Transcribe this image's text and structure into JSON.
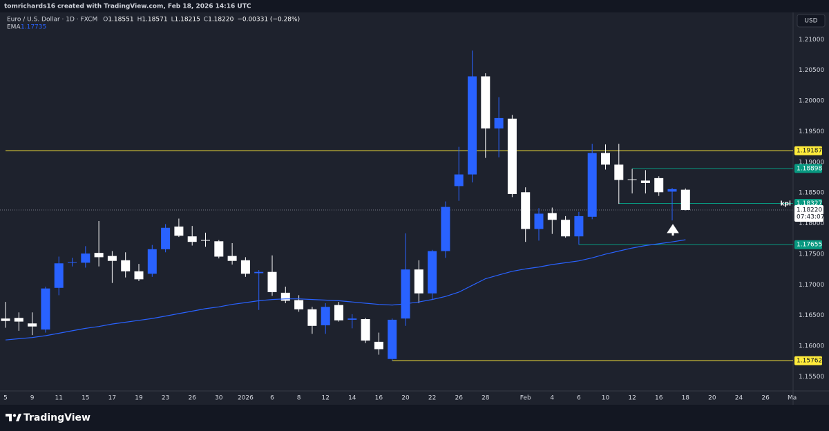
{
  "header": {
    "credit": "tomrichards16 created with TradingView.com, Feb 18, 2026 14:16 UTC",
    "currency": "USD"
  },
  "chart_data": {
    "type": "candlestick",
    "title": "Euro / U.S. Dollar · 1D · FXCM",
    "ohlc_legend": {
      "keys": [
        "O",
        "H",
        "L",
        "C"
      ],
      "values": [
        "1.18551",
        "1.18571",
        "1.18215",
        "1.18220"
      ],
      "change": "−0.00331 (−0.28%)"
    },
    "categories": [
      "5",
      null,
      "9",
      null,
      "11",
      null,
      "15",
      null,
      "17",
      null,
      "19",
      null,
      "23",
      null,
      "26",
      null,
      "30",
      null,
      "2026",
      null,
      "6",
      null,
      "8",
      null,
      "12",
      null,
      "14",
      null,
      "16",
      null,
      "20",
      null,
      "22",
      null,
      "26",
      null,
      "28",
      null,
      null,
      "Feb",
      null,
      "4",
      null,
      "6",
      null,
      "10",
      null,
      "12",
      null,
      "16",
      null,
      "18",
      null,
      "20",
      null,
      "24",
      null,
      "26",
      null,
      "Ma"
    ],
    "open": [
      1.1645,
      1.1646,
      1.1637,
      1.1627,
      1.1695,
      1.1737,
      1.1736,
      1.1752,
      1.1747,
      1.174,
      1.1722,
      1.1718,
      1.1758,
      1.1795,
      1.1779,
      1.1773,
      1.1771,
      1.1747,
      1.174,
      1.1719,
      1.1721,
      1.1687,
      1.1675,
      1.166,
      1.1634,
      1.1667,
      1.1643,
      1.1644,
      1.1607,
      1.1579,
      1.1645,
      1.1725,
      1.1686,
      1.1755,
      1.1861,
      1.188,
      1.204,
      1.1955,
      1.1971,
      1.1851,
      1.1791,
      1.1817,
      1.1806,
      1.1779,
      1.1811,
      1.1915,
      1.1896,
      1.1872,
      1.187,
      1.1874,
      1.1852,
      1.18551,
      null,
      null,
      null,
      null,
      null,
      null,
      null,
      null
    ],
    "high": [
      1.1672,
      1.1655,
      1.1655,
      1.1697,
      1.1746,
      1.1744,
      1.1763,
      1.1804,
      1.1755,
      1.1753,
      1.1734,
      1.1765,
      1.1799,
      1.1808,
      1.1796,
      1.1785,
      1.1773,
      1.1768,
      1.1745,
      1.1724,
      1.1748,
      1.1697,
      1.1683,
      1.1664,
      1.167,
      1.1672,
      1.1652,
      1.1646,
      1.1622,
      1.1645,
      1.1784,
      1.174,
      1.1757,
      1.1836,
      1.1925,
      1.2082,
      1.2045,
      1.2006,
      1.1977,
      1.1859,
      1.1825,
      1.1826,
      1.1812,
      1.1819,
      1.193,
      1.1929,
      1.193,
      1.1889,
      1.1887,
      1.1877,
      1.1858,
      1.18571,
      null,
      null,
      null,
      null,
      null,
      null,
      null,
      null
    ],
    "low": [
      1.163,
      1.1625,
      1.1618,
      1.1622,
      1.1683,
      1.173,
      1.1728,
      1.173,
      1.1703,
      1.1712,
      1.1706,
      1.1713,
      1.1753,
      1.1778,
      1.1764,
      1.1762,
      1.1743,
      1.1733,
      1.1713,
      1.1659,
      1.1682,
      1.167,
      1.1656,
      1.162,
      1.162,
      1.164,
      1.1629,
      1.1605,
      1.1586,
      1.15762,
      1.1633,
      1.167,
      1.1676,
      1.1744,
      1.1837,
      1.1867,
      1.1907,
      1.1908,
      1.1843,
      1.177,
      1.1772,
      1.1783,
      1.1777,
      1.17655,
      1.1807,
      1.1888,
      1.1832,
      1.1849,
      1.1849,
      1.1845,
      1.1805,
      1.18215,
      null,
      null,
      null,
      null,
      null,
      null,
      null,
      null
    ],
    "close": [
      1.1641,
      1.164,
      1.1632,
      1.1694,
      1.1735,
      1.1737,
      1.1751,
      1.1745,
      1.1739,
      1.1722,
      1.1709,
      1.1758,
      1.1793,
      1.178,
      1.177,
      1.1772,
      1.1746,
      1.1739,
      1.1718,
      1.1721,
      1.1688,
      1.1674,
      1.166,
      1.1633,
      1.1664,
      1.1642,
      1.1645,
      1.1609,
      1.1595,
      1.1643,
      1.1725,
      1.1686,
      1.1755,
      1.1827,
      1.188,
      1.204,
      1.1955,
      1.1972,
      1.1848,
      1.1791,
      1.1816,
      1.1806,
      1.1779,
      1.1812,
      1.1915,
      1.1896,
      1.1871,
      1.1871,
      1.1866,
      1.1851,
      1.1856,
      1.1822,
      null,
      null,
      null,
      null,
      null,
      null,
      null,
      null
    ],
    "up_color": "#2962ff",
    "down_color": "#ffffff",
    "series": [
      {
        "name": "EMA",
        "color": "#2962ff",
        "value_label": "1.17735",
        "values": [
          1.161,
          1.1612,
          1.1614,
          1.1617,
          1.1621,
          1.1625,
          1.1629,
          1.1632,
          1.1636,
          1.1639,
          1.1642,
          1.1645,
          1.1649,
          1.1653,
          1.1657,
          1.1661,
          1.1664,
          1.1668,
          1.1671,
          1.1674,
          1.1676,
          1.1677,
          1.1677,
          1.1676,
          1.1675,
          1.1674,
          1.1672,
          1.167,
          1.1668,
          1.1667,
          1.1669,
          1.1672,
          1.1676,
          1.1681,
          1.1688,
          1.1699,
          1.171,
          1.1716,
          1.1722,
          1.1726,
          1.1729,
          1.1733,
          1.1736,
          1.1739,
          1.1744,
          1.175,
          1.1755,
          1.176,
          1.1764,
          1.1767,
          1.177,
          1.17735,
          null,
          null,
          null,
          null,
          null,
          null,
          null,
          null
        ]
      }
    ],
    "levels": [
      {
        "value": 1.19187,
        "color": "#ffeb3b"
      },
      {
        "value": 1.18898,
        "color": "#089981"
      },
      {
        "value": 1.18327,
        "color": "#089981"
      },
      {
        "value": 1.17655,
        "color": "#089981"
      },
      {
        "value": 1.15762,
        "color": "#ffeb3b"
      }
    ],
    "last_price": {
      "value": 1.1822,
      "label": "1.18220",
      "countdown": "07:43:07",
      "tag": "kpi"
    },
    "ylim": [
      1.1528,
      1.2142
    ],
    "yticks": [
      {
        "value": 1.155,
        "label": "1.15500"
      },
      {
        "value": 1.16,
        "label": "1.16000"
      },
      {
        "value": 1.165,
        "label": "1.16500"
      },
      {
        "value": 1.17,
        "label": "1.17000"
      },
      {
        "value": 1.175,
        "label": "1.17500"
      },
      {
        "value": 1.18,
        "label": "1.18000"
      },
      {
        "value": 1.185,
        "label": "1.18500"
      },
      {
        "value": 1.19,
        "label": "1.19000"
      },
      {
        "value": 1.195,
        "label": "1.19500"
      },
      {
        "value": 1.2,
        "label": "1.20000"
      },
      {
        "value": 1.205,
        "label": "1.20500"
      },
      {
        "value": 1.21,
        "label": "1.21000"
      }
    ],
    "grid": false
  },
  "footer": {
    "brand": "TradingView"
  }
}
